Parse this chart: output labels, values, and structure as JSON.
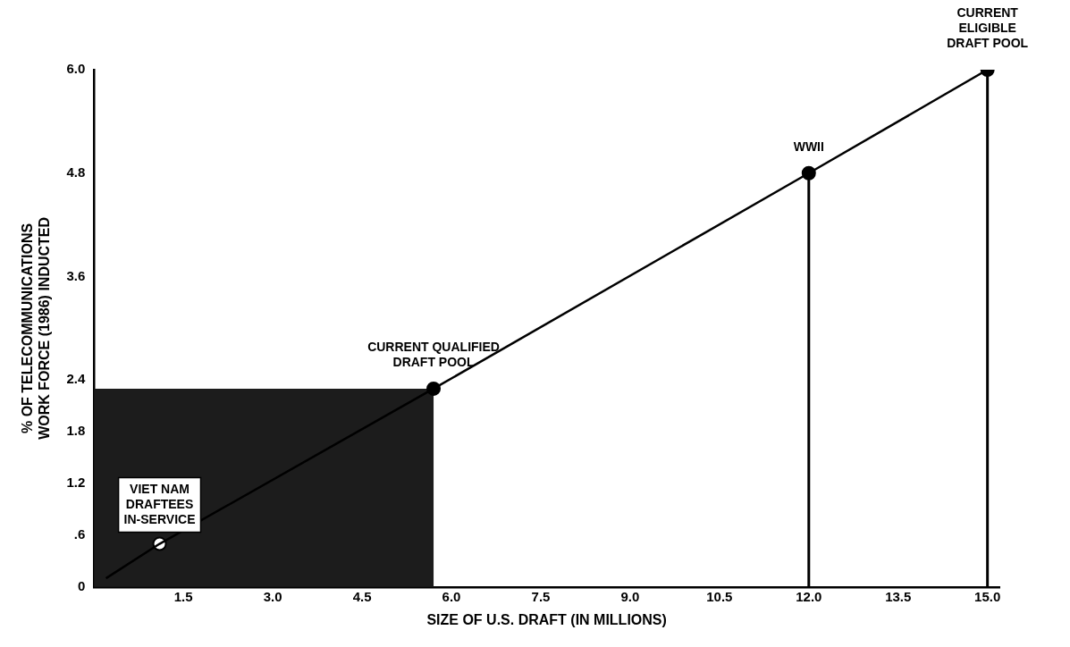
{
  "chart_data": {
    "type": "line",
    "xlabel": "SIZE OF U.S. DRAFT (IN MILLIONS)",
    "ylabel": "% OF TELECOMMUNICATIONS\nWORK FORCE (1986) INDUCTED",
    "xlim": [
      0,
      15.2
    ],
    "ylim": [
      0,
      6
    ],
    "xticks": [
      1.5,
      {
        "value": 3,
        "label": "3.0"
      },
      4.5,
      {
        "value": 6,
        "label": "6.0"
      },
      7.5,
      {
        "value": 9,
        "label": "9.0"
      },
      10.5,
      {
        "value": 12,
        "label": "12.0"
      },
      13.5,
      {
        "value": 15,
        "label": "15.0"
      }
    ],
    "yticks": [
      0,
      {
        "value": 0.6,
        "label": ".6"
      },
      1.2,
      1.8,
      2.4,
      3.6,
      4.8,
      {
        "value": 6,
        "label": "6.0"
      }
    ],
    "series": [
      {
        "color": "#000000",
        "marker": "none",
        "x": [
          0.2,
          1.1,
          5.7,
          12.0,
          15.0
        ],
        "values": [
          0.1,
          0.5,
          2.3,
          4.8,
          6.0
        ]
      },
      {
        "type": "scatter",
        "color": "#000000",
        "marker": "circle",
        "colors": [
          "#ffffff",
          "#000000",
          "#000000",
          "#000000"
        ],
        "x": [
          1.1,
          5.7,
          12.0,
          15.0
        ],
        "values": [
          0.5,
          2.3,
          4.8,
          6.0
        ]
      }
    ],
    "bands": [
      {
        "axis": "x",
        "from": 0,
        "to": 5.7,
        "color": "#1c1c1c"
      }
    ],
    "ref_lines": [
      {
        "axis": "x",
        "value": 12.0
      },
      {
        "axis": "x",
        "value": 15.0
      }
    ],
    "annotations": [
      {
        "text": "VIET NAM\nDRAFTEES\nIN-SERVICE",
        "x": 1.1,
        "y": 0.5
      },
      {
        "text": "CURRENT QUALIFIED\nDRAFT POOL",
        "x": 5.7,
        "y": 2.3
      },
      {
        "text": "WWII",
        "x": 12.0,
        "y": 4.8
      },
      {
        "text": "CURRENT\nELIGIBLE\nDRAFT POOL",
        "x": 15.0,
        "y": 6.0
      }
    ],
    "grid": false,
    "legend": false
  }
}
